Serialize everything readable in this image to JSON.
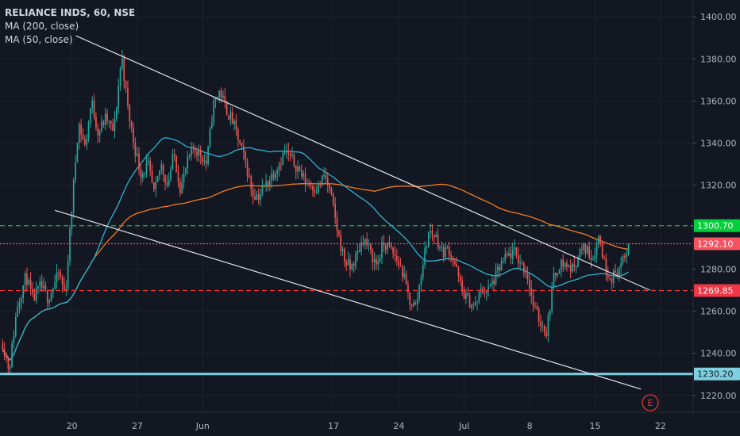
{
  "legend": {
    "symbol": "RELIANCE INDS, 60, NSE",
    "ma200": "MA (200, close)",
    "ma50": "MA (50, close)"
  },
  "earnings_marker": "E",
  "colors": {
    "background": "#131722",
    "up": "#26a69a",
    "down": "#ef5350",
    "ma200": "#f57c20",
    "ma50": "#2bb4d6",
    "trendline": "#e0e3eb",
    "resistance": "#00d03a",
    "current": "#f7525f",
    "support": "#ef3434",
    "base": "#7ed0e0",
    "grid": "#1e222d",
    "axis_text": "#b2b5be"
  },
  "chart_data": {
    "type": "candlestick",
    "title": "RELIANCE INDS, 60, NSE",
    "xlabel": "",
    "ylabel": "",
    "ylim": [
      1212,
      1408
    ],
    "y_ticks": [
      1220,
      1240,
      1260,
      1280,
      1300,
      1320,
      1340,
      1360,
      1380,
      1400
    ],
    "x_ticks": [
      {
        "label": "20",
        "session": 4
      },
      {
        "label": "27",
        "session": 9
      },
      {
        "label": "Jun",
        "session": 14
      },
      {
        "label": "17",
        "session": 24
      },
      {
        "label": "24",
        "session": 29
      },
      {
        "label": "Jul",
        "session": 34
      },
      {
        "label": "8",
        "session": 39
      },
      {
        "label": "15",
        "session": 44
      },
      {
        "label": "22",
        "session": 49
      }
    ],
    "session_range": [
      -1.5,
      51.5
    ],
    "bars_per_session": 7,
    "grid": true,
    "price_levels": [
      {
        "name": "resistance",
        "value": 1300.7,
        "label": "1300.70",
        "style": "dashed"
      },
      {
        "name": "current",
        "value": 1292.1,
        "label": "1292.10",
        "style": "dotted"
      },
      {
        "name": "support",
        "value": 1269.85,
        "label": "1269.85",
        "style": "dashed"
      },
      {
        "name": "base",
        "value": 1230.2,
        "label": "1230.20",
        "style": "solid"
      }
    ],
    "trendlines": [
      {
        "name": "upper-channel",
        "from": {
          "session": 4.3,
          "value": 1391
        },
        "to": {
          "session": 48.2,
          "value": 1270
        }
      },
      {
        "name": "lower-channel",
        "from": {
          "session": 2.7,
          "value": 1308
        },
        "to": {
          "session": 47.5,
          "value": 1223
        }
      }
    ],
    "anchors": [
      {
        "session": -1.3,
        "value": 1245
      },
      {
        "session": -0.8,
        "value": 1232
      },
      {
        "session": -0.2,
        "value": 1262
      },
      {
        "session": 0.5,
        "value": 1277
      },
      {
        "session": 1.0,
        "value": 1265
      },
      {
        "session": 1.6,
        "value": 1272
      },
      {
        "session": 2.2,
        "value": 1266
      },
      {
        "session": 2.6,
        "value": 1272
      },
      {
        "session": 3.0,
        "value": 1278
      },
      {
        "session": 3.5,
        "value": 1268
      },
      {
        "session": 4.0,
        "value": 1310
      },
      {
        "session": 4.5,
        "value": 1350
      },
      {
        "session": 5.0,
        "value": 1338
      },
      {
        "session": 5.5,
        "value": 1360
      },
      {
        "session": 6.0,
        "value": 1345
      },
      {
        "session": 6.6,
        "value": 1352
      },
      {
        "session": 7.2,
        "value": 1345
      },
      {
        "session": 7.8,
        "value": 1382
      },
      {
        "session": 8.3,
        "value": 1355
      },
      {
        "session": 8.8,
        "value": 1338
      },
      {
        "session": 9.3,
        "value": 1325
      },
      {
        "session": 9.8,
        "value": 1330
      },
      {
        "session": 10.3,
        "value": 1315
      },
      {
        "session": 10.8,
        "value": 1330
      },
      {
        "session": 11.3,
        "value": 1320
      },
      {
        "session": 11.8,
        "value": 1335
      },
      {
        "session": 12.3,
        "value": 1318
      },
      {
        "session": 12.8,
        "value": 1330
      },
      {
        "session": 13.3,
        "value": 1338
      },
      {
        "session": 13.8,
        "value": 1335
      },
      {
        "session": 14.3,
        "value": 1330
      },
      {
        "session": 14.8,
        "value": 1358
      },
      {
        "session": 15.3,
        "value": 1365
      },
      {
        "session": 15.8,
        "value": 1356
      },
      {
        "session": 16.3,
        "value": 1350
      },
      {
        "session": 16.8,
        "value": 1340
      },
      {
        "session": 17.3,
        "value": 1330
      },
      {
        "session": 17.8,
        "value": 1316
      },
      {
        "session": 18.3,
        "value": 1315
      },
      {
        "session": 18.8,
        "value": 1320
      },
      {
        "session": 19.3,
        "value": 1325
      },
      {
        "session": 19.8,
        "value": 1330
      },
      {
        "session": 20.3,
        "value": 1336
      },
      {
        "session": 20.8,
        "value": 1332
      },
      {
        "session": 21.3,
        "value": 1328
      },
      {
        "session": 21.8,
        "value": 1322
      },
      {
        "session": 22.3,
        "value": 1320
      },
      {
        "session": 22.8,
        "value": 1318
      },
      {
        "session": 23.3,
        "value": 1325
      },
      {
        "session": 23.8,
        "value": 1315
      },
      {
        "session": 24.3,
        "value": 1298
      },
      {
        "session": 24.8,
        "value": 1285
      },
      {
        "session": 25.3,
        "value": 1280
      },
      {
        "session": 25.8,
        "value": 1287
      },
      {
        "session": 26.3,
        "value": 1295
      },
      {
        "session": 26.8,
        "value": 1288
      },
      {
        "session": 27.3,
        "value": 1282
      },
      {
        "session": 27.8,
        "value": 1292
      },
      {
        "session": 28.3,
        "value": 1290
      },
      {
        "session": 28.8,
        "value": 1285
      },
      {
        "session": 29.3,
        "value": 1278
      },
      {
        "session": 29.8,
        "value": 1265
      },
      {
        "session": 30.3,
        "value": 1262
      },
      {
        "session": 30.8,
        "value": 1282
      },
      {
        "session": 31.3,
        "value": 1298
      },
      {
        "session": 31.8,
        "value": 1296
      },
      {
        "session": 32.3,
        "value": 1288
      },
      {
        "session": 32.8,
        "value": 1290
      },
      {
        "session": 33.3,
        "value": 1282
      },
      {
        "session": 33.8,
        "value": 1270
      },
      {
        "session": 34.3,
        "value": 1265
      },
      {
        "session": 34.8,
        "value": 1262
      },
      {
        "session": 35.3,
        "value": 1270
      },
      {
        "session": 35.8,
        "value": 1270
      },
      {
        "session": 36.3,
        "value": 1275
      },
      {
        "session": 36.8,
        "value": 1282
      },
      {
        "session": 37.3,
        "value": 1286
      },
      {
        "session": 37.8,
        "value": 1288
      },
      {
        "session": 38.3,
        "value": 1283
      },
      {
        "session": 38.8,
        "value": 1278
      },
      {
        "session": 39.3,
        "value": 1262
      },
      {
        "session": 39.8,
        "value": 1255
      },
      {
        "session": 40.3,
        "value": 1250
      },
      {
        "session": 40.8,
        "value": 1275
      },
      {
        "session": 41.3,
        "value": 1283
      },
      {
        "session": 41.8,
        "value": 1282
      },
      {
        "session": 42.3,
        "value": 1280
      },
      {
        "session": 42.8,
        "value": 1288
      },
      {
        "session": 43.3,
        "value": 1290
      },
      {
        "session": 43.8,
        "value": 1285
      },
      {
        "session": 44.3,
        "value": 1296
      },
      {
        "session": 44.8,
        "value": 1280
      },
      {
        "session": 45.3,
        "value": 1276
      },
      {
        "session": 45.8,
        "value": 1280
      },
      {
        "session": 46.3,
        "value": 1285
      },
      {
        "session": 46.6,
        "value": 1292
      }
    ]
  }
}
